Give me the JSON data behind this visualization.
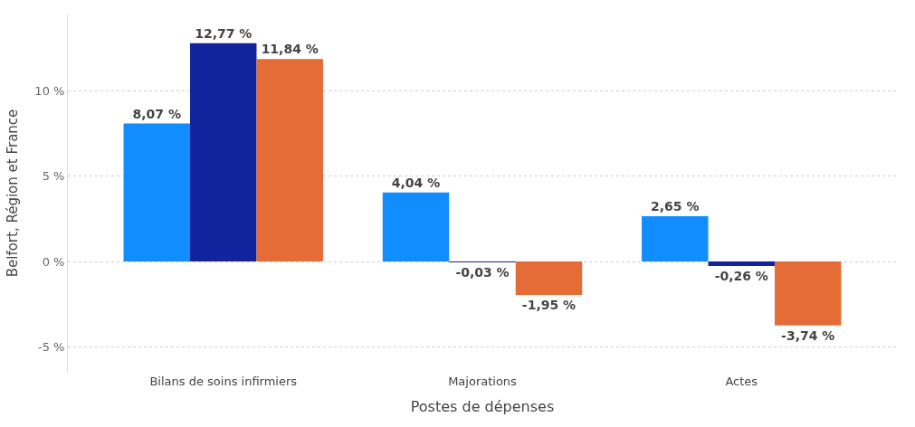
{
  "chart_data": {
    "type": "bar",
    "xlabel": "Postes de dépenses",
    "ylabel": "Belfort, Région et France",
    "categories": [
      "Bilans de soins infirmiers",
      "Majorations",
      "Actes"
    ],
    "series": [
      {
        "color": "#118dff",
        "values": [
          8.07,
          4.04,
          2.65
        ],
        "value_labels": [
          "8,07 %",
          "4,04 %",
          "2,65 %"
        ]
      },
      {
        "color": "#12239e",
        "values": [
          12.77,
          -0.03,
          -0.26
        ],
        "value_labels": [
          "12,77 %",
          "-0,03 %",
          "-0,26 %"
        ]
      },
      {
        "color": "#e66c37",
        "values": [
          11.84,
          -1.95,
          -3.74
        ],
        "value_labels": [
          "11,84 %",
          "-1,95 %",
          "-3,74 %"
        ]
      }
    ],
    "ylim": [
      -6.5,
      14.5
    ],
    "yticks": [
      {
        "value": -5,
        "label": "-5 %"
      },
      {
        "value": 0,
        "label": "0 %"
      },
      {
        "value": 5,
        "label": "5 %"
      },
      {
        "value": 10,
        "label": "10 %"
      }
    ],
    "grid": "y"
  }
}
